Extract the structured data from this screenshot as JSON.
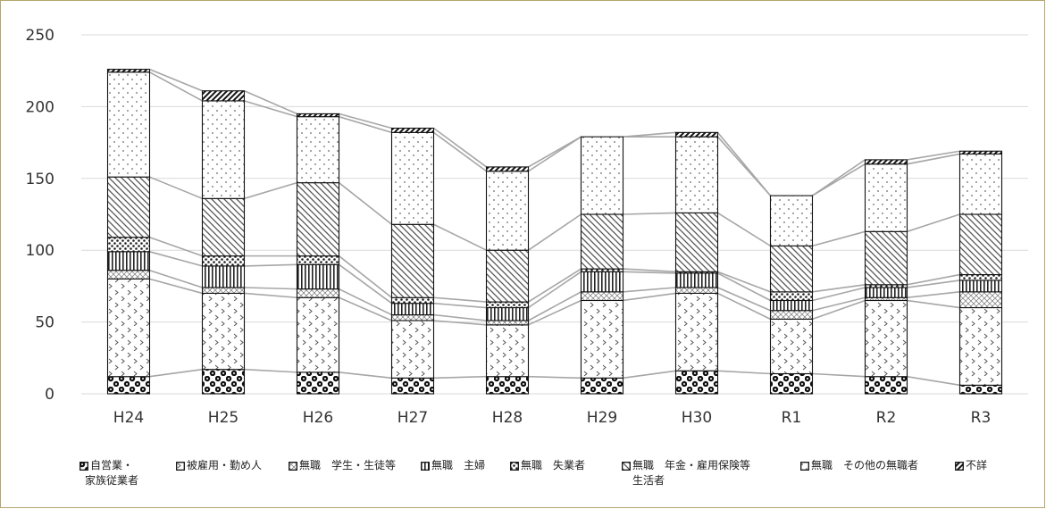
{
  "chart_data": {
    "type": "bar",
    "stacked": true,
    "categories": [
      "H24",
      "H25",
      "H26",
      "H27",
      "H28",
      "H29",
      "H30",
      "R1",
      "R2",
      "R3"
    ],
    "ylim": [
      0,
      250
    ],
    "yticks": [
      0,
      50,
      100,
      150,
      200,
      250
    ],
    "grid": true,
    "legend_position": "bottom",
    "series": [
      {
        "name": "自営業・家族従業者",
        "values": [
          12,
          17,
          15,
          11,
          12,
          11,
          16,
          14,
          12,
          6
        ]
      },
      {
        "name": "被雇用・勤め人",
        "values": [
          68,
          53,
          52,
          40,
          36,
          54,
          54,
          38,
          53,
          54
        ]
      },
      {
        "name": "無職　学生・生徒等",
        "values": [
          6,
          4,
          6,
          4,
          3,
          6,
          4,
          6,
          2,
          11
        ]
      },
      {
        "name": "無職　主婦",
        "values": [
          13,
          15,
          17,
          8,
          9,
          14,
          10,
          7,
          7,
          8
        ]
      },
      {
        "name": "無職　失業者",
        "values": [
          10,
          7,
          6,
          4,
          4,
          2,
          1,
          6,
          2,
          4
        ]
      },
      {
        "name": "無職　年金・雇用保険等生活者",
        "values": [
          42,
          40,
          51,
          51,
          36,
          38,
          41,
          32,
          37,
          42
        ]
      },
      {
        "name": "無職　その他の無職者",
        "values": [
          73,
          68,
          46,
          64,
          55,
          54,
          53,
          35,
          47,
          42
        ]
      },
      {
        "name": "不詳",
        "values": [
          2,
          7,
          2,
          3,
          3,
          0,
          3,
          0,
          3,
          2
        ]
      }
    ]
  },
  "legend": {
    "items": [
      {
        "label_line1": "自営業・",
        "label_line2": "家族従業者",
        "icon": "filled-square-icon"
      },
      {
        "label_line1": "被雇用・勤め人",
        "label_line2": "",
        "icon": "open-square-icon"
      },
      {
        "label_line1": "無職　学生・生徒等",
        "label_line2": "",
        "icon": "square-icon"
      },
      {
        "label_line1": "無職　主婦",
        "label_line2": "",
        "icon": "square-icon"
      },
      {
        "label_line1": "無職　失業者",
        "label_line2": "",
        "icon": "square-icon"
      },
      {
        "label_line1": "無職　年金・雇用保険等",
        "label_line2": "生活者",
        "icon": "square-icon"
      },
      {
        "label_line1": "無職　その他の無職者",
        "label_line2": "",
        "icon": "open-square-icon"
      },
      {
        "label_line1": "不詳",
        "label_line2": "",
        "icon": "square-icon"
      }
    ]
  }
}
